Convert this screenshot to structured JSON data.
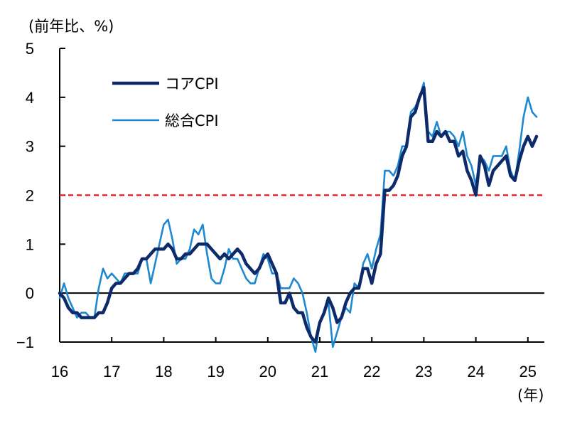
{
  "chart_data": {
    "type": "line",
    "ylabel": "(前年比、%)",
    "xlabel": "(年)",
    "ylim": [
      -1,
      5
    ],
    "yticks": [
      "−1",
      "0",
      "1",
      "2",
      "3",
      "4",
      "5"
    ],
    "xticks": [
      "16",
      "17",
      "18",
      "19",
      "20",
      "21",
      "22",
      "23",
      "24",
      "25"
    ],
    "x_start": "2016-01",
    "x_end": "2025-03",
    "grid": false,
    "legend_position": "top-left",
    "reference_line": {
      "value": 2,
      "style": "dashed",
      "color": "#e8202a"
    },
    "zero_line": {
      "value": 0,
      "color": "#000000"
    },
    "series": [
      {
        "name": "コアCPI",
        "color": "#0d2a6b",
        "values": [
          0,
          -0.1,
          -0.3,
          -0.4,
          -0.4,
          -0.5,
          -0.5,
          -0.5,
          -0.5,
          -0.4,
          -0.4,
          -0.2,
          0.1,
          0.2,
          0.2,
          0.3,
          0.4,
          0.4,
          0.5,
          0.7,
          0.7,
          0.8,
          0.9,
          0.9,
          0.9,
          1.0,
          0.9,
          0.7,
          0.7,
          0.8,
          0.8,
          0.9,
          1.0,
          1.0,
          1.0,
          0.9,
          0.8,
          0.7,
          0.8,
          0.7,
          0.8,
          0.9,
          0.8,
          0.6,
          0.5,
          0.4,
          0.5,
          0.7,
          0.8,
          0.6,
          0.4,
          -0.2,
          -0.2,
          0,
          -0.3,
          -0.4,
          -0.4,
          -0.7,
          -0.9,
          -1.0,
          -0.6,
          -0.4,
          -0.1,
          -0.3,
          -0.6,
          -0.5,
          -0.2,
          0,
          0.1,
          0.1,
          0.5,
          0.5,
          0.2,
          0.6,
          0.8,
          2.1,
          2.1,
          2.2,
          2.4,
          2.8,
          3.0,
          3.6,
          3.7,
          4.0,
          4.2,
          3.1,
          3.1,
          3.3,
          3.2,
          3.3,
          3.1,
          3.1,
          2.8,
          2.9,
          2.5,
          2.3,
          2.0,
          2.8,
          2.6,
          2.2,
          2.5,
          2.6,
          2.7,
          2.8,
          2.4,
          2.3,
          2.7,
          3.0,
          3.2,
          3.0,
          3.2
        ]
      },
      {
        "name": "総合CPI",
        "color": "#1e88d0",
        "values": [
          -0.1,
          0.2,
          -0.1,
          -0.3,
          -0.5,
          -0.4,
          -0.4,
          -0.5,
          -0.5,
          0.1,
          0.5,
          0.3,
          0.4,
          0.3,
          0.2,
          0.4,
          0.4,
          0.4,
          0.4,
          0.7,
          0.7,
          0.2,
          0.6,
          1.0,
          1.4,
          1.5,
          1.1,
          0.6,
          0.7,
          0.7,
          0.9,
          1.3,
          1.2,
          1.4,
          0.8,
          0.3,
          0.2,
          0.2,
          0.5,
          0.9,
          0.7,
          0.7,
          0.5,
          0.3,
          0.2,
          0.2,
          0.5,
          0.8,
          0.7,
          0.4,
          0.4,
          0.1,
          0.1,
          0.1,
          0.3,
          0.2,
          0,
          -0.4,
          -0.9,
          -1.2,
          -0.6,
          -0.4,
          -0.2,
          -1.1,
          -0.8,
          -0.5,
          -0.3,
          -0.4,
          0.2,
          0.1,
          0.6,
          0.8,
          0.5,
          0.9,
          1.2,
          2.5,
          2.5,
          2.4,
          2.6,
          3.0,
          3.0,
          3.7,
          3.8,
          4.0,
          4.3,
          3.3,
          3.2,
          3.5,
          3.2,
          3.3,
          3.3,
          3.2,
          3.0,
          3.3,
          2.8,
          2.6,
          2.2,
          2.8,
          2.7,
          2.5,
          2.8,
          2.8,
          2.8,
          3.0,
          2.5,
          2.3,
          2.9,
          3.6,
          4.0,
          3.7,
          3.6
        ]
      }
    ]
  }
}
